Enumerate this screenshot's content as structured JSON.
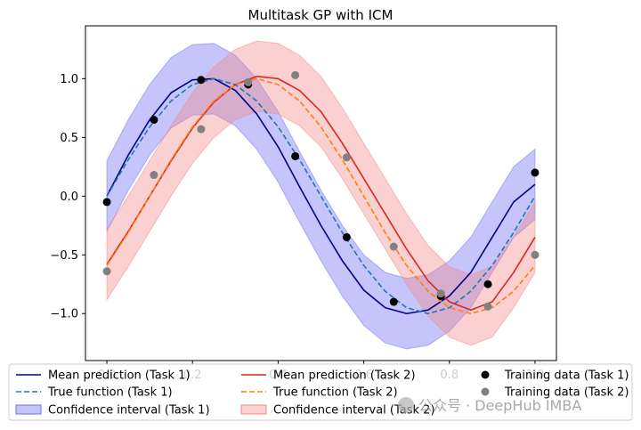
{
  "chart_data": {
    "type": "line",
    "title": "Multitask GP with ICM",
    "xlabel": "",
    "ylabel": "",
    "xlim": [
      -0.05,
      1.05
    ],
    "ylim": [
      -1.4,
      1.45
    ],
    "xticks": [
      0.0,
      0.2,
      0.4,
      0.6,
      0.8,
      1.0
    ],
    "xtick_labels": [
      "0.0",
      "0.2",
      "0.4",
      "0.6",
      "0.8",
      "1.0"
    ],
    "yticks": [
      -1.0,
      -0.5,
      0.0,
      0.5,
      1.0
    ],
    "ytick_labels": [
      "−1.0",
      "−0.5",
      "0.0",
      "0.5",
      "1.0"
    ],
    "grid": false,
    "legend_position": "bottom",
    "colors": {
      "mean1": "#00008b",
      "true1": "#1f77b4",
      "ci1": "#6f6ff5",
      "mean2": "#d62728",
      "true2": "#ff7f0e",
      "ci2": "#f28a8a",
      "train1": "#000000",
      "train2": "#808080"
    },
    "curves": {
      "x": [
        0.0,
        0.05,
        0.1,
        0.15,
        0.2,
        0.25,
        0.3,
        0.35,
        0.4,
        0.45,
        0.5,
        0.55,
        0.6,
        0.65,
        0.7,
        0.75,
        0.8,
        0.85,
        0.9,
        0.95,
        1.0
      ],
      "mean_task1": [
        0.0,
        0.35,
        0.65,
        0.88,
        0.99,
        1.0,
        0.9,
        0.7,
        0.42,
        0.08,
        -0.25,
        -0.55,
        -0.8,
        -0.95,
        -1.0,
        -0.97,
        -0.85,
        -0.65,
        -0.35,
        -0.05,
        0.1
      ],
      "true_task1": [
        0.0,
        0.31,
        0.59,
        0.81,
        0.95,
        1.0,
        0.95,
        0.81,
        0.59,
        0.31,
        0.0,
        -0.31,
        -0.59,
        -0.81,
        -0.95,
        -1.0,
        -0.95,
        -0.81,
        -0.59,
        -0.31,
        0.0
      ],
      "ci_task1_lower": [
        -0.3,
        0.05,
        0.35,
        0.58,
        0.69,
        0.7,
        0.6,
        0.4,
        0.12,
        -0.22,
        -0.55,
        -0.85,
        -1.1,
        -1.25,
        -1.3,
        -1.27,
        -1.15,
        -0.95,
        -0.65,
        -0.35,
        -0.2
      ],
      "ci_task1_upper": [
        0.3,
        0.65,
        0.95,
        1.18,
        1.29,
        1.3,
        1.2,
        1.0,
        0.72,
        0.38,
        0.05,
        -0.25,
        -0.5,
        -0.65,
        -0.7,
        -0.67,
        -0.55,
        -0.35,
        -0.05,
        0.25,
        0.4
      ],
      "mean_task2": [
        -0.58,
        -0.3,
        0.0,
        0.3,
        0.58,
        0.8,
        0.95,
        1.02,
        1.0,
        0.9,
        0.72,
        0.45,
        0.15,
        -0.15,
        -0.45,
        -0.72,
        -0.9,
        -0.97,
        -0.9,
        -0.65,
        -0.35
      ],
      "true_task2": [
        -0.59,
        -0.31,
        0.0,
        0.31,
        0.59,
        0.81,
        0.95,
        1.0,
        0.95,
        0.81,
        0.59,
        0.31,
        0.0,
        -0.31,
        -0.59,
        -0.81,
        -0.95,
        -1.0,
        -0.95,
        -0.81,
        -0.59
      ],
      "ci_task2_lower": [
        -0.88,
        -0.6,
        -0.3,
        0.0,
        0.28,
        0.5,
        0.65,
        0.72,
        0.7,
        0.6,
        0.42,
        0.15,
        -0.15,
        -0.45,
        -0.75,
        -1.02,
        -1.2,
        -1.27,
        -1.2,
        -0.95,
        -0.65
      ],
      "ci_task2_upper": [
        -0.28,
        0.0,
        0.3,
        0.6,
        0.88,
        1.1,
        1.25,
        1.32,
        1.3,
        1.2,
        1.02,
        0.75,
        0.45,
        0.15,
        -0.15,
        -0.42,
        -0.6,
        -0.67,
        -0.6,
        -0.35,
        -0.05
      ]
    },
    "training_task1": {
      "x": [
        0.0,
        0.11,
        0.22,
        0.33,
        0.44,
        0.56,
        0.67,
        0.78,
        0.89,
        1.0
      ],
      "y": [
        -0.05,
        0.65,
        0.99,
        0.95,
        0.34,
        -0.35,
        -0.9,
        -0.85,
        -0.75,
        0.2
      ]
    },
    "training_task2": {
      "x": [
        0.0,
        0.11,
        0.22,
        0.33,
        0.44,
        0.56,
        0.67,
        0.78,
        0.89,
        1.0
      ],
      "y": [
        -0.64,
        0.18,
        0.57,
        0.97,
        1.03,
        0.33,
        -0.43,
        -0.83,
        -0.94,
        -0.5
      ]
    },
    "legend": [
      {
        "label": "Mean prediction (Task 1)",
        "kind": "line",
        "color": "#00008b"
      },
      {
        "label": "Mean prediction (Task 2)",
        "kind": "line",
        "color": "#d62728"
      },
      {
        "label": "Training data (Task 1)",
        "kind": "marker",
        "color": "#000000"
      },
      {
        "label": "True function (Task 1)",
        "kind": "dashed",
        "color": "#1f77b4"
      },
      {
        "label": "True function (Task 2)",
        "kind": "dashed",
        "color": "#ff7f0e"
      },
      {
        "label": "Training data (Task 2)",
        "kind": "marker",
        "color": "#808080"
      },
      {
        "label": "Confidence interval (Task 1)",
        "kind": "patch",
        "color": "#6f6ff5"
      },
      {
        "label": "Confidence interval (Task 2)",
        "kind": "patch",
        "color": "#f28a8a"
      }
    ]
  },
  "watermark": "公众号 · DeepHub IMBA"
}
